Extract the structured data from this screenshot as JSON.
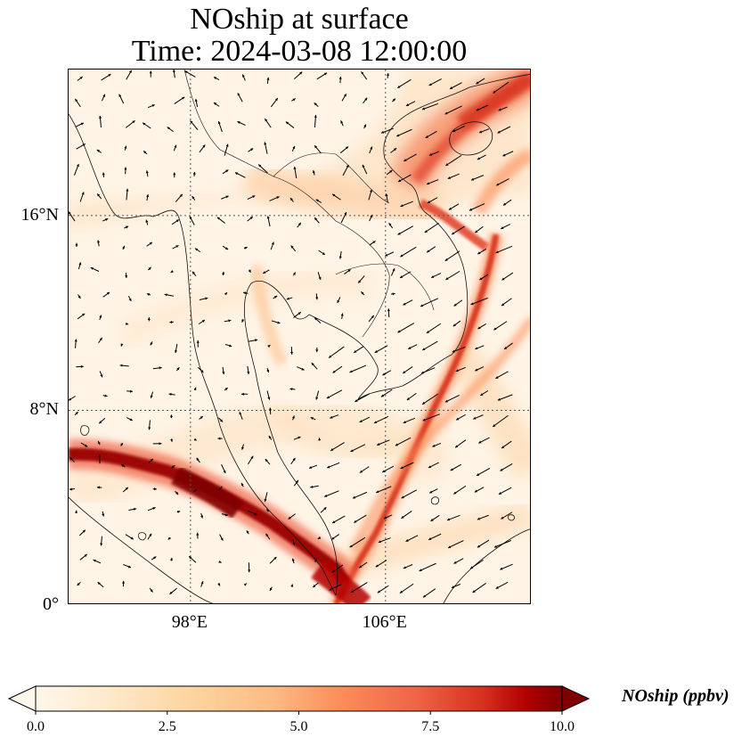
{
  "title": {
    "line1": "NOship at surface",
    "line2": "Time: 2024-03-08 12:00:00"
  },
  "map": {
    "variable": "NOship",
    "level": "surface",
    "time": "2024-03-08 12:00:00",
    "extent": {
      "lon": [
        93,
        112
      ],
      "lat": [
        0,
        22
      ]
    },
    "gridlines_lon": [
      98,
      106
    ],
    "gridlines_lat": [
      8,
      16
    ],
    "y_ticks": [
      {
        "value": 16,
        "label": "16°N"
      },
      {
        "value": 8,
        "label": "8°N"
      },
      {
        "value": 0,
        "label": "0°"
      }
    ],
    "x_ticks": [
      {
        "value": 98,
        "label": "98°E"
      },
      {
        "value": 106,
        "label": "106°E"
      }
    ],
    "overlay": "wind vectors (quiver)",
    "coastlines": true,
    "borders": true
  },
  "colorbar": {
    "label": "NOship (ppbv)",
    "colormap": "OrRd",
    "range": [
      0.0,
      10.0
    ],
    "extend": "both",
    "ticks": [
      "0.0",
      "2.5",
      "5.0",
      "7.5",
      "10.0"
    ]
  },
  "colors": {
    "low": "#fff7ec",
    "mid": "#fc8d59",
    "high": "#7f0000",
    "vectors": "#000000"
  }
}
